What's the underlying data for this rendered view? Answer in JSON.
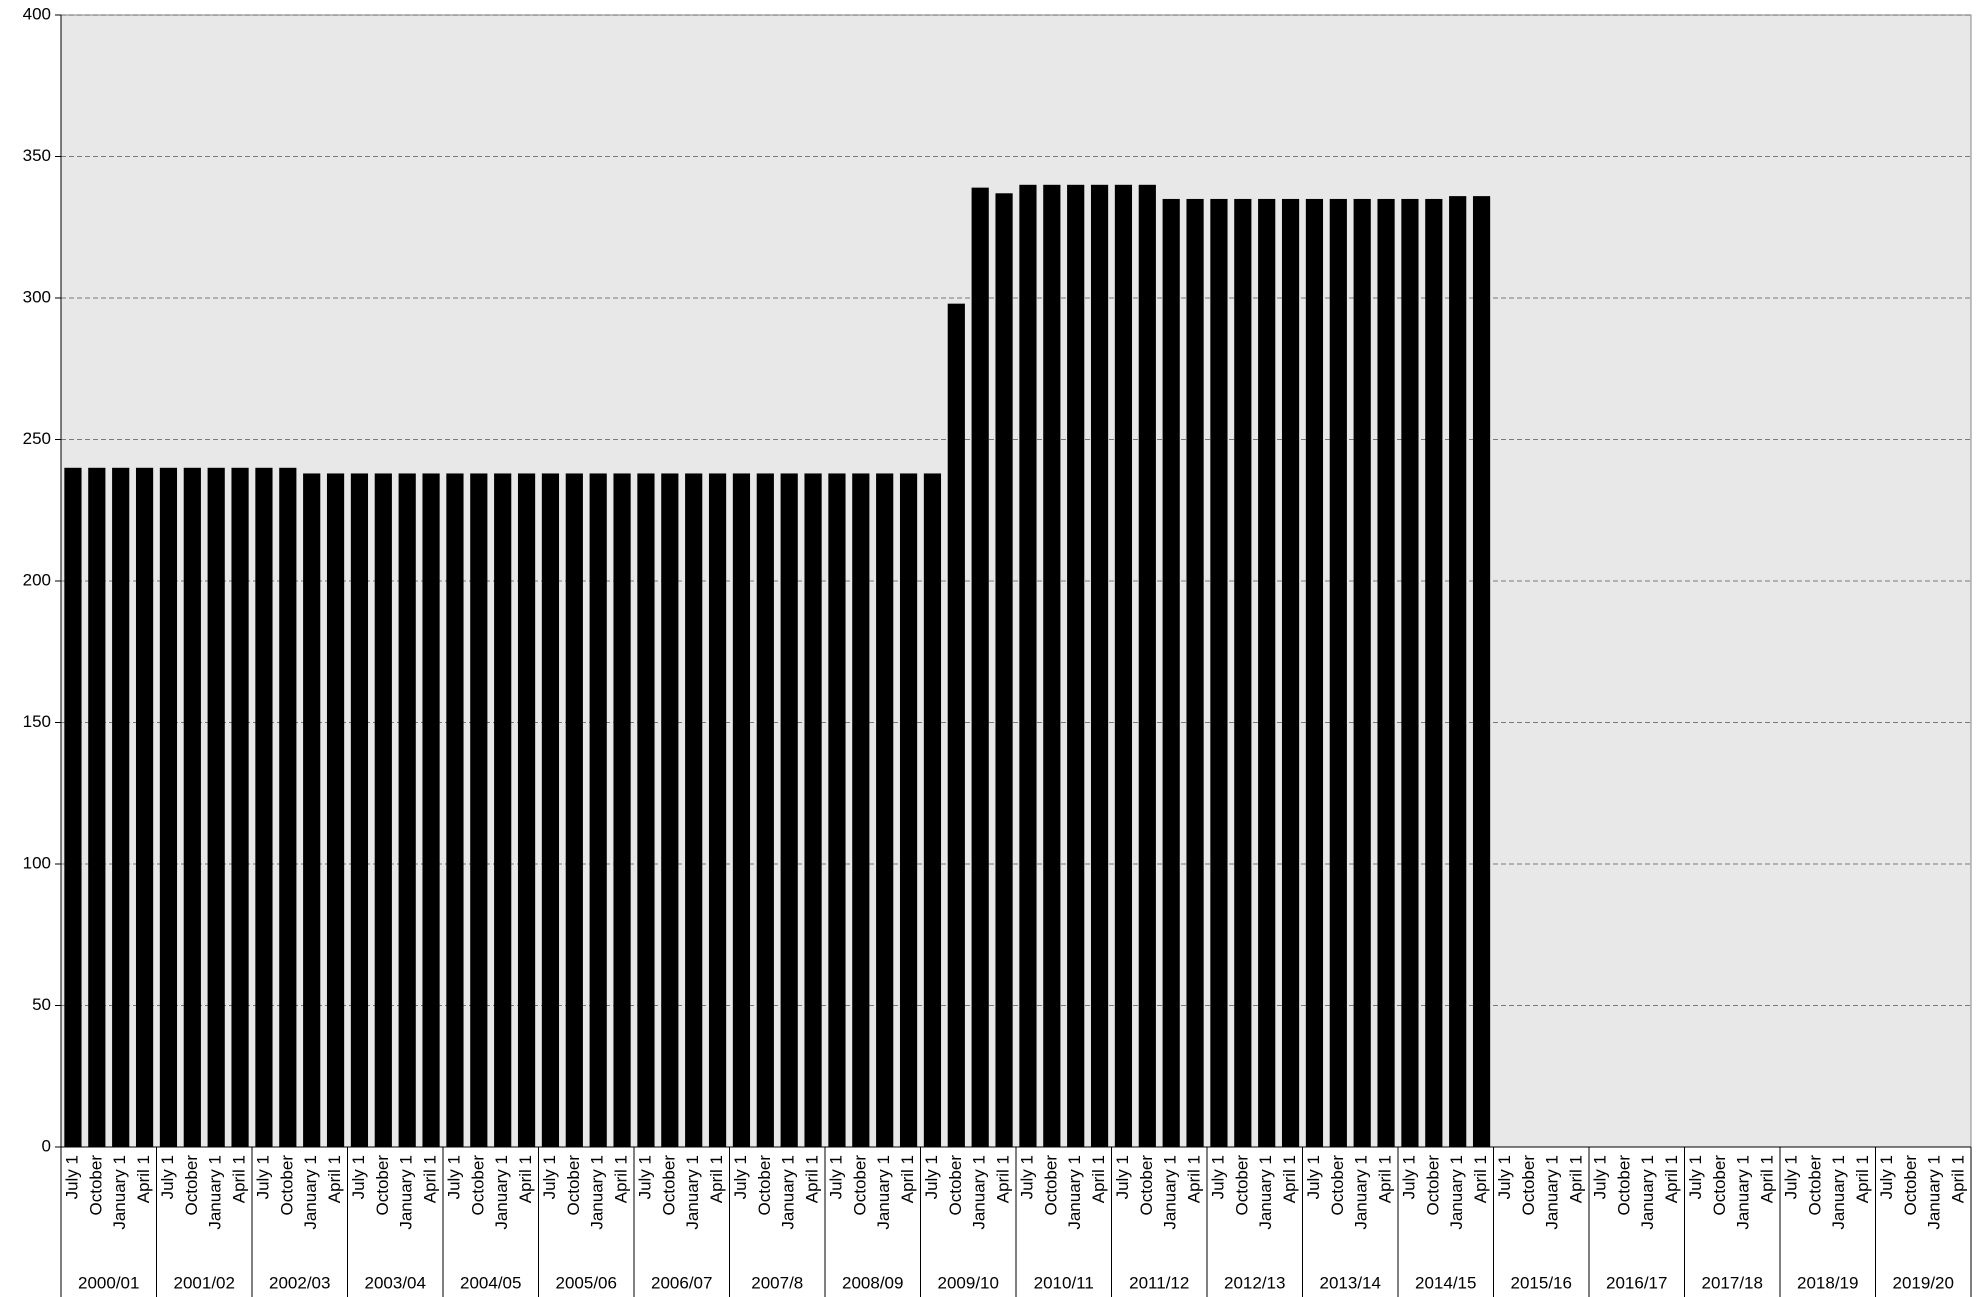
{
  "chart_data": {
    "type": "bar",
    "color": "#000000",
    "background": "#e8e8e8",
    "grid": true,
    "ylim": [
      0,
      400
    ],
    "yticks": [
      0,
      50,
      100,
      150,
      200,
      250,
      300,
      350,
      400
    ],
    "groups": [
      "2000/01",
      "2001/02",
      "2002/03",
      "2003/04",
      "2004/05",
      "2005/06",
      "2006/07",
      "2007/8",
      "2008/09",
      "2009/10",
      "2010/11",
      "2011/12",
      "2012/13",
      "2013/14",
      "2014/15",
      "2015/16",
      "2016/17",
      "2017/18",
      "2018/19",
      "2019/20"
    ],
    "categories": [
      "July 1",
      "October",
      "January 1",
      "April 1",
      "July 1",
      "October",
      "January 1",
      "April 1",
      "July 1",
      "October",
      "January 1",
      "April 1",
      "July 1",
      "October",
      "January 1",
      "April 1",
      "July 1",
      "October",
      "January 1",
      "April 1",
      "July 1",
      "October",
      "January 1",
      "April 1",
      "July 1",
      "October",
      "January 1",
      "April 1",
      "July 1",
      "October",
      "January 1",
      "April 1",
      "July 1",
      "October",
      "January 1",
      "April 1",
      "July 1",
      "October",
      "January 1",
      "April 1",
      "July 1",
      "October",
      "January 1",
      "April 1",
      "July 1",
      "October",
      "January 1",
      "April 1",
      "July 1",
      "October",
      "January 1",
      "April 1",
      "July 1",
      "October",
      "January 1",
      "April 1",
      "July 1",
      "October",
      "January 1",
      "April 1",
      "July 1",
      "October",
      "January 1",
      "April 1",
      "July 1",
      "October",
      "January 1",
      "April 1",
      "July 1",
      "October",
      "January 1",
      "April 1",
      "July 1",
      "October",
      "January 1",
      "April 1",
      "July 1",
      "October",
      "January 1",
      "April 1"
    ],
    "values": [
      240,
      240,
      240,
      240,
      240,
      240,
      240,
      240,
      240,
      240,
      238,
      238,
      238,
      238,
      238,
      238,
      238,
      238,
      238,
      238,
      238,
      238,
      238,
      238,
      238,
      238,
      238,
      238,
      238,
      238,
      238,
      238,
      238,
      238,
      238,
      238,
      238,
      298,
      339,
      337,
      340,
      340,
      340,
      340,
      340,
      340,
      335,
      335,
      335,
      335,
      335,
      335,
      335,
      335,
      335,
      335,
      335,
      335,
      336,
      336,
      null,
      null,
      null,
      null,
      null,
      null,
      null,
      null,
      null,
      null,
      null,
      null,
      null,
      null,
      null,
      null,
      null,
      null,
      null,
      null
    ]
  }
}
